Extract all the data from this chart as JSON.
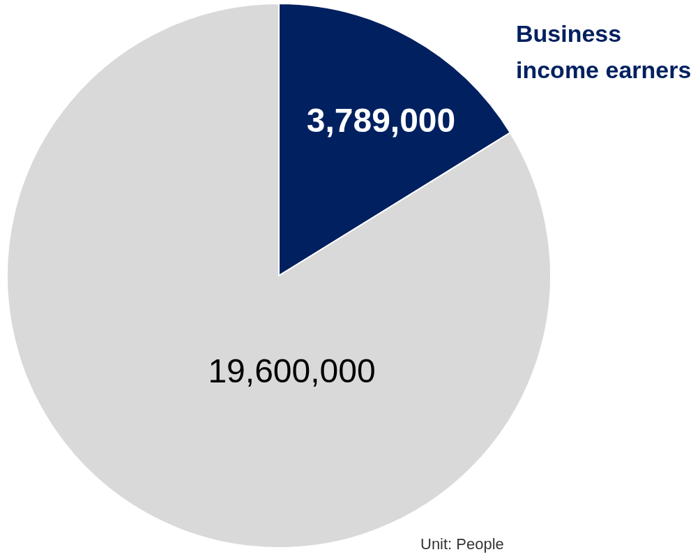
{
  "chart_data": {
    "type": "pie",
    "categories": [
      "Business income earners",
      null
    ],
    "values": [
      3789000,
      19600000
    ],
    "colors": [
      "#002060",
      "#d9d9d9"
    ],
    "value_labels": [
      "3,789,000",
      "19,600,000"
    ],
    "legend": false,
    "annotations": [
      "Unit: People"
    ]
  }
}
